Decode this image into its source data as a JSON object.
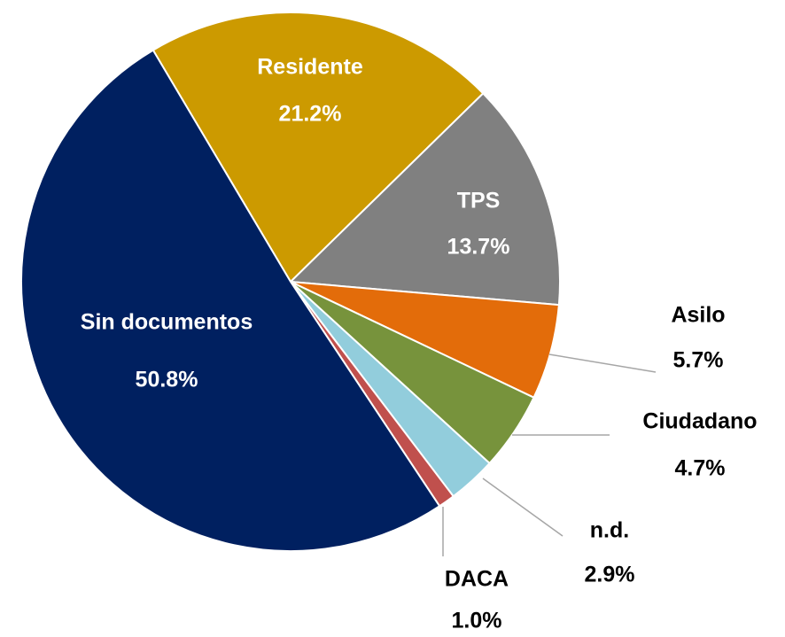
{
  "chart_data": {
    "type": "pie",
    "categories": [
      "Residente",
      "TPS",
      "Asilo",
      "Ciudadano",
      "n.d.",
      "DACA",
      "Sin documentos"
    ],
    "values": [
      21.2,
      13.7,
      5.7,
      4.7,
      2.9,
      1.0,
      50.8
    ],
    "value_labels": [
      "21.2%",
      "13.7%",
      "5.7%",
      "4.7%",
      "2.9%",
      "1.0%",
      "50.8%"
    ],
    "colors": [
      "#cc9a00",
      "#808080",
      "#e36c0a",
      "#77933c",
      "#92cddc",
      "#c0504d",
      "#002060"
    ]
  }
}
